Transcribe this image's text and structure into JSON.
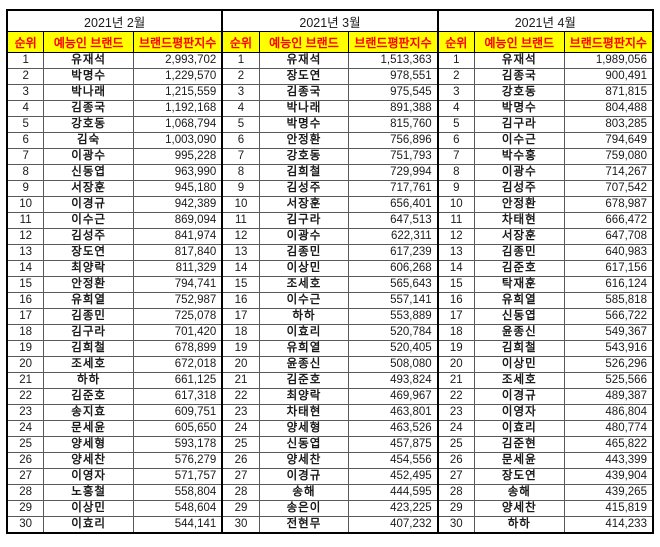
{
  "colors": {
    "header_bg": "#FFFF00",
    "header_text": "#FF0000",
    "border": "#000000"
  },
  "chart_data": {
    "type": "table",
    "headers": [
      "순위",
      "예능인 브랜드",
      "브랜드평판지수"
    ],
    "sections": [
      {
        "month": "2021년 2월",
        "rows": [
          [
            1,
            "유재석",
            "2,993,702"
          ],
          [
            2,
            "박명수",
            "1,229,570"
          ],
          [
            3,
            "박나래",
            "1,215,559"
          ],
          [
            4,
            "김종국",
            "1,192,168"
          ],
          [
            5,
            "강호동",
            "1,068,794"
          ],
          [
            6,
            "김숙",
            "1,003,090"
          ],
          [
            7,
            "이광수",
            "995,228"
          ],
          [
            8,
            "신동엽",
            "963,990"
          ],
          [
            9,
            "서장훈",
            "945,180"
          ],
          [
            10,
            "이경규",
            "942,389"
          ],
          [
            11,
            "이수근",
            "869,094"
          ],
          [
            12,
            "김성주",
            "841,974"
          ],
          [
            13,
            "장도연",
            "817,840"
          ],
          [
            14,
            "최양락",
            "811,329"
          ],
          [
            15,
            "안정환",
            "794,741"
          ],
          [
            16,
            "유희열",
            "752,987"
          ],
          [
            17,
            "김종민",
            "725,078"
          ],
          [
            18,
            "김구라",
            "701,420"
          ],
          [
            19,
            "김희철",
            "678,899"
          ],
          [
            20,
            "조세호",
            "672,018"
          ],
          [
            21,
            "하하",
            "661,125"
          ],
          [
            22,
            "김준호",
            "617,318"
          ],
          [
            23,
            "송지효",
            "609,751"
          ],
          [
            24,
            "문세윤",
            "605,650"
          ],
          [
            25,
            "양세형",
            "593,178"
          ],
          [
            26,
            "양세찬",
            "576,279"
          ],
          [
            27,
            "이영자",
            "571,757"
          ],
          [
            28,
            "노홍철",
            "558,804"
          ],
          [
            29,
            "이상민",
            "548,604"
          ],
          [
            30,
            "이효리",
            "544,141"
          ]
        ]
      },
      {
        "month": "2021년 3월",
        "rows": [
          [
            1,
            "유재석",
            "1,513,363"
          ],
          [
            2,
            "장도연",
            "978,551"
          ],
          [
            3,
            "김종국",
            "975,545"
          ],
          [
            4,
            "박나래",
            "891,388"
          ],
          [
            5,
            "박명수",
            "815,760"
          ],
          [
            6,
            "안정환",
            "756,896"
          ],
          [
            7,
            "강호동",
            "751,793"
          ],
          [
            8,
            "김희철",
            "729,994"
          ],
          [
            9,
            "김성주",
            "717,761"
          ],
          [
            10,
            "서장훈",
            "656,401"
          ],
          [
            11,
            "김구라",
            "647,513"
          ],
          [
            12,
            "이광수",
            "622,311"
          ],
          [
            13,
            "김종민",
            "617,239"
          ],
          [
            14,
            "이상민",
            "606,268"
          ],
          [
            15,
            "조세호",
            "565,643"
          ],
          [
            16,
            "이수근",
            "557,141"
          ],
          [
            17,
            "하하",
            "553,889"
          ],
          [
            18,
            "이효리",
            "520,784"
          ],
          [
            19,
            "유희열",
            "520,405"
          ],
          [
            20,
            "윤종신",
            "508,080"
          ],
          [
            21,
            "김준호",
            "493,824"
          ],
          [
            22,
            "최양락",
            "469,967"
          ],
          [
            23,
            "차태현",
            "463,801"
          ],
          [
            24,
            "양세형",
            "463,526"
          ],
          [
            25,
            "신동엽",
            "457,875"
          ],
          [
            26,
            "양세찬",
            "454,556"
          ],
          [
            27,
            "이경규",
            "452,495"
          ],
          [
            28,
            "송해",
            "444,595"
          ],
          [
            29,
            "송은이",
            "423,225"
          ],
          [
            30,
            "전현무",
            "407,232"
          ]
        ]
      },
      {
        "month": "2021년 4월",
        "rows": [
          [
            1,
            "유재석",
            "1,989,056"
          ],
          [
            2,
            "김종국",
            "900,491"
          ],
          [
            3,
            "강호동",
            "871,815"
          ],
          [
            4,
            "박명수",
            "804,488"
          ],
          [
            5,
            "김구라",
            "803,285"
          ],
          [
            6,
            "이수근",
            "794,649"
          ],
          [
            7,
            "박수홍",
            "759,080"
          ],
          [
            8,
            "이광수",
            "714,267"
          ],
          [
            9,
            "김성주",
            "707,542"
          ],
          [
            10,
            "안정환",
            "678,987"
          ],
          [
            11,
            "차태현",
            "666,472"
          ],
          [
            12,
            "서장훈",
            "647,708"
          ],
          [
            13,
            "김종민",
            "640,983"
          ],
          [
            14,
            "김준호",
            "617,156"
          ],
          [
            15,
            "탁재훈",
            "616,124"
          ],
          [
            16,
            "유희열",
            "585,818"
          ],
          [
            17,
            "신동엽",
            "566,722"
          ],
          [
            18,
            "윤종신",
            "549,367"
          ],
          [
            19,
            "김희철",
            "543,916"
          ],
          [
            20,
            "이상민",
            "526,296"
          ],
          [
            21,
            "조세호",
            "525,566"
          ],
          [
            22,
            "이경규",
            "489,387"
          ],
          [
            23,
            "이영자",
            "486,804"
          ],
          [
            24,
            "이효리",
            "480,774"
          ],
          [
            25,
            "김준현",
            "465,822"
          ],
          [
            26,
            "문세윤",
            "443,399"
          ],
          [
            27,
            "장도연",
            "439,904"
          ],
          [
            28,
            "송해",
            "439,265"
          ],
          [
            29,
            "양세찬",
            "415,819"
          ],
          [
            30,
            "하하",
            "414,233"
          ]
        ]
      }
    ]
  }
}
